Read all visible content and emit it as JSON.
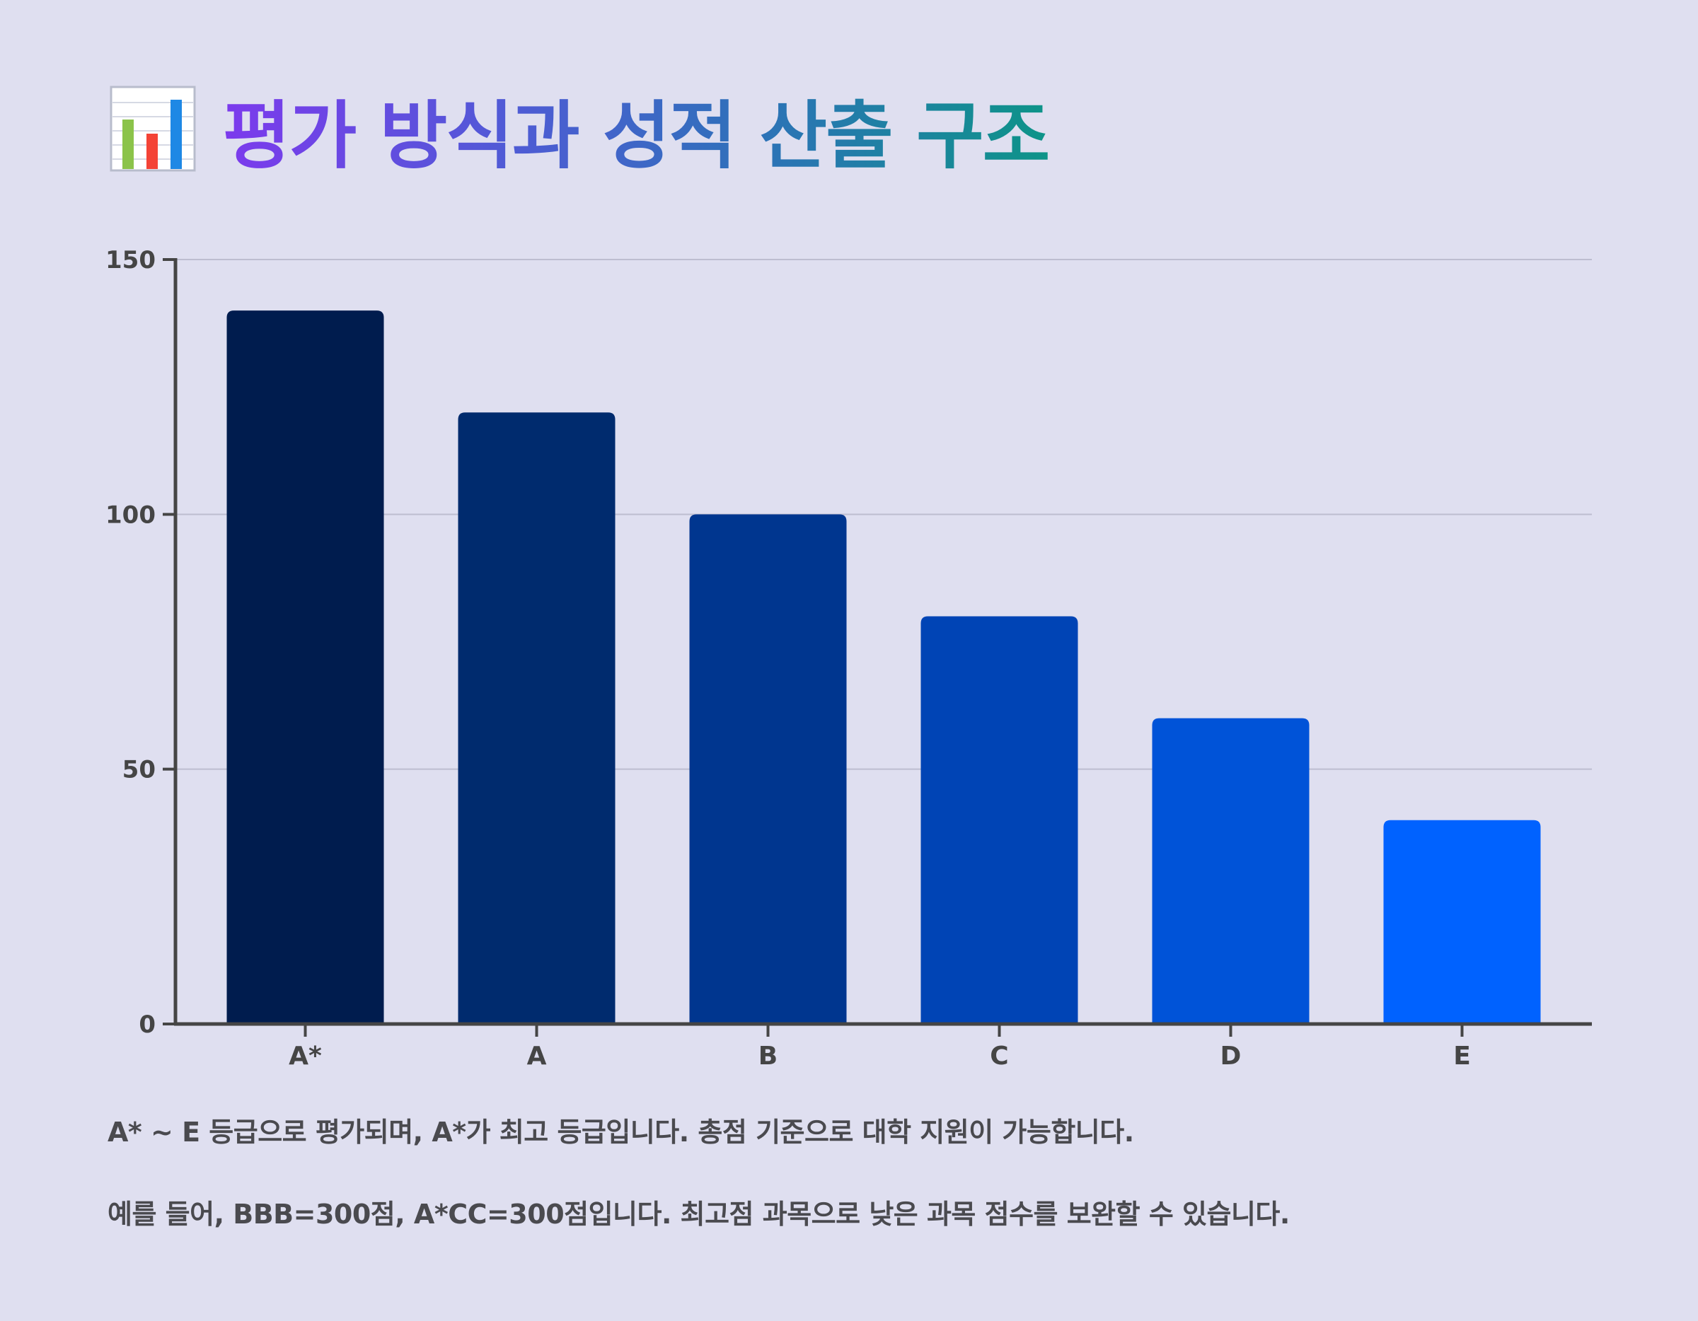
{
  "title": "평가 방식과 성적 산출 구조",
  "title_icon": "bar-chart-icon",
  "colors": {
    "background": "#dfdff0",
    "axis": "#454545",
    "grid": "#bdbdd0",
    "text": "#4a4a4f"
  },
  "chart_data": {
    "type": "bar",
    "categories": [
      "A*",
      "A",
      "B",
      "C",
      "D",
      "E"
    ],
    "values": [
      140,
      120,
      100,
      80,
      60,
      40
    ],
    "colors": [
      "#001c4e",
      "#002b6e",
      "#00368f",
      "#0044b5",
      "#0053d8",
      "#0062ff"
    ],
    "xlabel": "",
    "ylabel": "",
    "ylim": [
      0,
      150
    ],
    "yticks": [
      0,
      50,
      100,
      150
    ],
    "grid": true
  },
  "notes": [
    "A* ~ E 등급으로 평가되며, A*가 최고 등급입니다. 총점 기준으로 대학 지원이 가능합니다.",
    "예를 들어, BBB=300점, A*CC=300점입니다. 최고점 과목으로 낮은 과목 점수를 보완할 수 있습니다."
  ]
}
